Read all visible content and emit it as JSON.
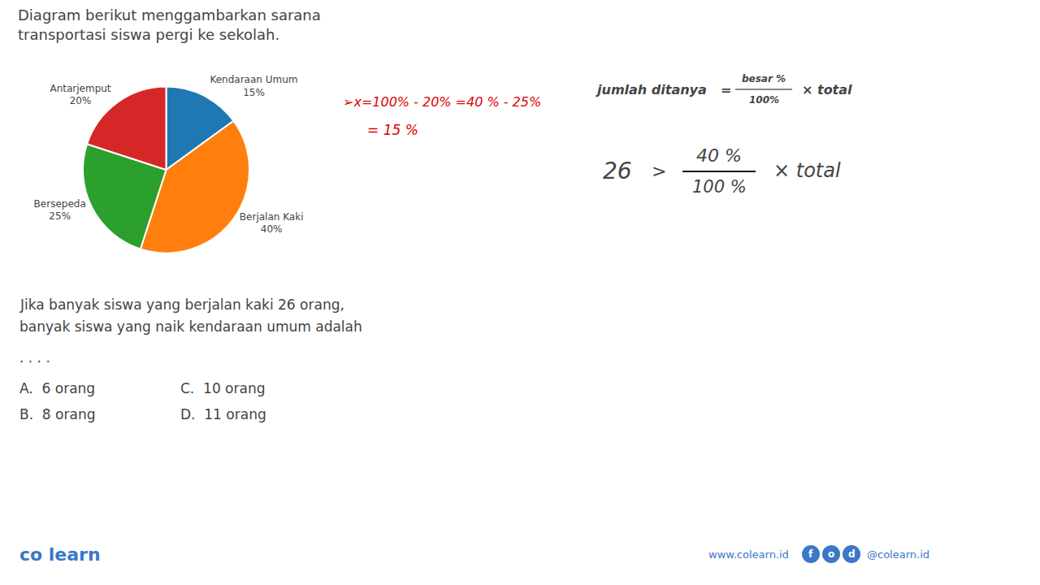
{
  "chart_data": {
    "type": "pie",
    "title": "Diagram berikut menggambarkan sarana\ntransportasi siswa pergi ke sekolah.",
    "categories": [
      "Kendaraan Umum",
      "Berjalan Kaki",
      "Bersepeda",
      "Antarjemput"
    ],
    "values": [
      15,
      40,
      25,
      20
    ],
    "value_labels": [
      "15%",
      "40%",
      "25%",
      "20%"
    ],
    "data_labels": true,
    "annotations": [
      {
        "text": "➢x=100% - 20% =40 % - 25%",
        "color": "#dd0000"
      },
      {
        "text": "= 15 %",
        "color": "#dd0000"
      },
      {
        "text": "jumlah ditanya"
      },
      {
        "text": "="
      },
      {
        "text": "besar %"
      },
      {
        "text": "100%"
      },
      {
        "text": "× total"
      },
      {
        "text": "26"
      },
      {
        "text": ">"
      },
      {
        "text": "40 %"
      },
      {
        "text": "100 %"
      },
      {
        "text": "× total"
      },
      {
        "text": "Jika banyak siswa yang berjalan kaki 26 orang,"
      },
      {
        "text": "banyak siswa yang naik kendaraan umum adalah"
      },
      {
        "text": ". . . ."
      },
      {
        "text": "A.  6 orang"
      },
      {
        "text": "B.  8 orang"
      },
      {
        "text": "C.  10 orang"
      },
      {
        "text": "D.  11 orang"
      },
      {
        "text": "co learn",
        "color": "#3a78c8"
      },
      {
        "text": "www.colearn.id",
        "color": "#3a78c8"
      },
      {
        "text": "f",
        "color": "#3a78c8"
      },
      {
        "text": "o",
        "color": "#3a78c8"
      },
      {
        "text": "d",
        "color": "#3a78c8"
      },
      {
        "text": "@colearn.id",
        "color": "#3a78c8"
      }
    ]
  }
}
